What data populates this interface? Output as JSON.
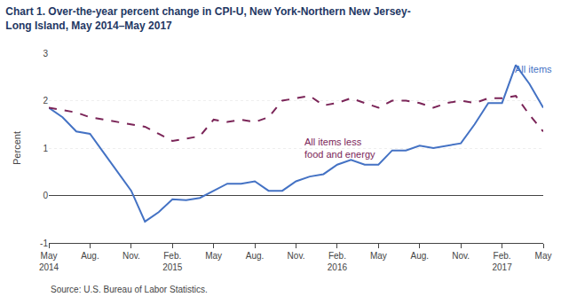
{
  "chart_data": {
    "type": "line",
    "title": "Chart 1. Over-the-year percent change in CPI-U, New York-Northern New Jersey-\nLong Island, May 2014–May 2017",
    "ylabel": "Percent",
    "source": "Source: U.S. Bureau of Labor Statistics.",
    "categories": [
      "May\n2014",
      null,
      null,
      "Aug.",
      null,
      null,
      "Nov.",
      null,
      null,
      "Feb.\n2015",
      null,
      null,
      "May",
      null,
      null,
      "Aug.",
      null,
      null,
      "Nov.",
      null,
      null,
      "Feb.\n2016",
      null,
      null,
      "May",
      null,
      null,
      "Aug.",
      null,
      null,
      "Nov.",
      null,
      null,
      "Feb.\n2017",
      null,
      null,
      "May"
    ],
    "series": [
      {
        "color": "#4472C4",
        "line_style": "solid",
        "values": [
          1.85,
          1.65,
          1.35,
          1.3,
          0.9,
          0.5,
          0.1,
          -0.55,
          -0.35,
          -0.08,
          -0.1,
          -0.05,
          0.1,
          0.25,
          0.25,
          0.3,
          0.1,
          0.1,
          0.3,
          0.4,
          0.45,
          0.65,
          0.75,
          0.65,
          0.65,
          0.95,
          0.95,
          1.05,
          1.0,
          1.05,
          1.1,
          1.5,
          1.95,
          1.95,
          2.75,
          2.35,
          1.85
        ]
      },
      {
        "color": "#7B2558",
        "line_style": "dashed",
        "values": [
          1.85,
          1.8,
          1.75,
          1.65,
          1.6,
          1.55,
          1.5,
          1.45,
          1.3,
          1.15,
          1.2,
          1.25,
          1.6,
          1.55,
          1.6,
          1.55,
          1.65,
          2.0,
          2.05,
          2.1,
          1.9,
          1.95,
          2.05,
          1.95,
          1.85,
          2.0,
          2.0,
          1.95,
          1.85,
          1.95,
          2.0,
          1.95,
          2.05,
          2.05,
          2.1,
          1.7,
          1.35
        ]
      }
    ],
    "annotations": [
      {
        "text": "All items",
        "x": 33.8,
        "y": 2.82,
        "color": "#4472C4"
      },
      {
        "text": "All items less\nfood and energy",
        "x": 18.5,
        "y": 1.28,
        "color": "#7B2558"
      }
    ],
    "ylim": [
      -1,
      3
    ],
    "yticks": [
      -1,
      0,
      1,
      2,
      3
    ],
    "grid": true,
    "title_color": "#1F3864"
  }
}
